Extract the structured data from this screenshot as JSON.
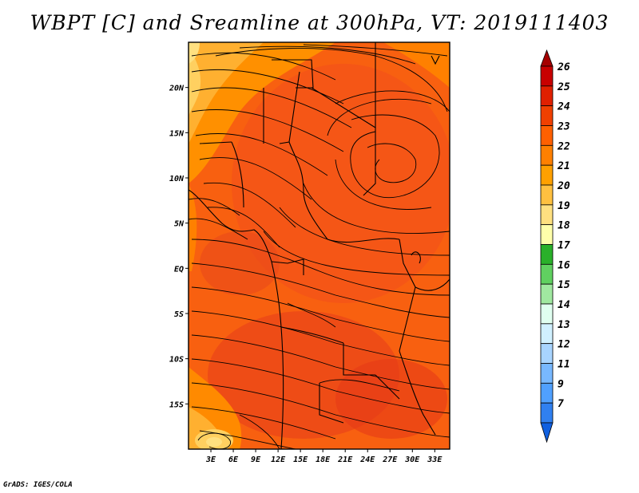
{
  "title": "WBPT [C] and Sreamline at 300hPa, VT: 2019111403",
  "footer": "GrADS: IGES/COLA",
  "map": {
    "lon_range": [
      0,
      35
    ],
    "lat_range": [
      -20,
      25
    ],
    "lat_ticks": [
      {
        "value": 20,
        "label": "20N"
      },
      {
        "value": 15,
        "label": "15N"
      },
      {
        "value": 10,
        "label": "10N"
      },
      {
        "value": 5,
        "label": "5N"
      },
      {
        "value": 0,
        "label": "EQ"
      },
      {
        "value": -5,
        "label": "5S"
      },
      {
        "value": -10,
        "label": "10S"
      },
      {
        "value": -15,
        "label": "15S"
      }
    ],
    "lon_ticks": [
      {
        "value": 3,
        "label": "3E"
      },
      {
        "value": 6,
        "label": "6E"
      },
      {
        "value": 9,
        "label": "9E"
      },
      {
        "value": 12,
        "label": "12E"
      },
      {
        "value": 15,
        "label": "15E"
      },
      {
        "value": 18,
        "label": "18E"
      },
      {
        "value": 21,
        "label": "21E"
      },
      {
        "value": 24,
        "label": "24E"
      },
      {
        "value": 27,
        "label": "27E"
      },
      {
        "value": 30,
        "label": "30E"
      },
      {
        "value": 33,
        "label": "33E"
      }
    ]
  },
  "colorbar": {
    "labels": [
      "26",
      "25",
      "24",
      "23",
      "22",
      "21",
      "20",
      "19",
      "18",
      "17",
      "16",
      "15",
      "14",
      "13",
      "12",
      "11",
      "9",
      "7"
    ],
    "colors": [
      "#a50000",
      "#c80000",
      "#e02000",
      "#f04000",
      "#ff6000",
      "#ff8000",
      "#ffa000",
      "#ffc040",
      "#ffe080",
      "#ffffaa",
      "#2ab02a",
      "#60d060",
      "#a0e8a0",
      "#e0fff0",
      "#d0f0ff",
      "#a8d4ff",
      "#78b8ff",
      "#50a0ff",
      "#3080f0",
      "#1060e0"
    ]
  }
}
